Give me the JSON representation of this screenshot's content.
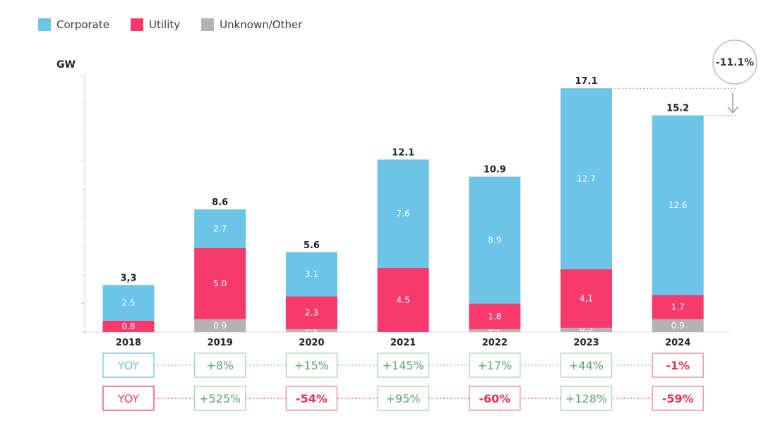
{
  "legend": {
    "corporate": "Corporate",
    "utility": "Utility",
    "other": "Unknown/Other"
  },
  "colors": {
    "corporate": "#6cc5e6",
    "utility": "#f73a6c",
    "other": "#b3b3b3",
    "yoy_positive": "#5aa86c",
    "yoy_negative": "#e8324f"
  },
  "chart_data": {
    "type": "bar",
    "stacked": true,
    "ylabel": "GW",
    "ylim": [
      0,
      18
    ],
    "categories": [
      "2018",
      "2019",
      "2020",
      "2021",
      "2022",
      "2023",
      "2024"
    ],
    "series": [
      {
        "name": "Unknown/Other",
        "values": [
          0,
          0.9,
          0.2,
          0,
          0.2,
          0.3,
          0.9
        ],
        "labels": [
          "",
          "0.9",
          "0.2",
          "",
          "0.2",
          "0.3",
          "0.9"
        ]
      },
      {
        "name": "Utility",
        "values": [
          0.8,
          5.0,
          2.3,
          4.5,
          1.8,
          4.1,
          1.7
        ],
        "labels": [
          "0.8",
          "5.0",
          "2.3",
          "4.5",
          "1.8",
          "4,1",
          "1.7"
        ]
      },
      {
        "name": "Corporate",
        "values": [
          2.5,
          2.7,
          3.1,
          7.6,
          8.9,
          12.7,
          12.6
        ],
        "labels": [
          "2.5",
          "2.7",
          "3.1",
          "7.6",
          "8.9",
          "12.7",
          "12.6"
        ]
      }
    ],
    "totals": [
      3.3,
      8.6,
      5.6,
      12.1,
      10.9,
      17.1,
      15.2
    ],
    "total_labels": [
      "3,3",
      "8.6",
      "5.6",
      "12.1",
      "10.9",
      "17.1",
      "15.2"
    ],
    "change_annotation": "-11.1%",
    "yoy_corporate": {
      "label": "YOY",
      "values": [
        "",
        "+8%",
        "+15%",
        "+145%",
        "+17%",
        "+44%",
        "-1%"
      ]
    },
    "yoy_utility": {
      "label": "YOY",
      "values": [
        "",
        "+525%",
        "-54%",
        "+95%",
        "-60%",
        "+128%",
        "-59%"
      ]
    }
  }
}
